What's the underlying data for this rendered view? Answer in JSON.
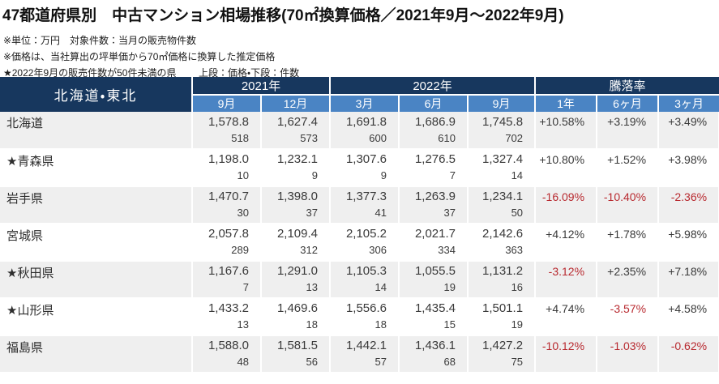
{
  "header": {
    "title": "47都道府県別　中古マンション相場推移(70㎡換算価格／2021年9月～2022年9月)",
    "note_unit": "※単位：万円　対象件数：当月の販売物件数",
    "note_price": "※価格は、当社算出の坪単価から70㎡価格に換算した推定価格",
    "note_star": "★2022年9月の販売件数が50件未満の県",
    "note_legend": "上段：価格・下段：件数"
  },
  "table": {
    "region_label": "北海道・東北",
    "col_groups": [
      {
        "label": "2021年",
        "span": 2
      },
      {
        "label": "2022年",
        "span": 3
      },
      {
        "label": "騰落率",
        "span": 3
      }
    ],
    "month_cols": [
      "9月",
      "12月",
      "3月",
      "6月",
      "9月"
    ],
    "rate_cols": [
      "1年",
      "6ヶ月",
      "3ヶ月"
    ],
    "rows": [
      {
        "name": "北海道",
        "prices": [
          "1,578.8",
          "1,627.4",
          "1,691.8",
          "1,686.9",
          "1,745.8"
        ],
        "counts": [
          "518",
          "573",
          "600",
          "610",
          "702"
        ],
        "rates": [
          "+10.58%",
          "+3.19%",
          "+3.49%"
        ]
      },
      {
        "name": "★青森県",
        "prices": [
          "1,198.0",
          "1,232.1",
          "1,307.6",
          "1,276.5",
          "1,327.4"
        ],
        "counts": [
          "10",
          "9",
          "9",
          "7",
          "14"
        ],
        "rates": [
          "+10.80%",
          "+1.52%",
          "+3.98%"
        ]
      },
      {
        "name": "岩手県",
        "prices": [
          "1,470.7",
          "1,398.0",
          "1,377.3",
          "1,263.9",
          "1,234.1"
        ],
        "counts": [
          "30",
          "37",
          "41",
          "37",
          "50"
        ],
        "rates": [
          "-16.09%",
          "-10.40%",
          "-2.36%"
        ]
      },
      {
        "name": "宮城県",
        "prices": [
          "2,057.8",
          "2,109.4",
          "2,105.2",
          "2,021.7",
          "2,142.6"
        ],
        "counts": [
          "289",
          "312",
          "306",
          "334",
          "363"
        ],
        "rates": [
          "+4.12%",
          "+1.78%",
          "+5.98%"
        ]
      },
      {
        "name": "★秋田県",
        "prices": [
          "1,167.6",
          "1,291.0",
          "1,105.3",
          "1,055.5",
          "1,131.2"
        ],
        "counts": [
          "7",
          "13",
          "14",
          "19",
          "16"
        ],
        "rates": [
          "-3.12%",
          "+2.35%",
          "+7.18%"
        ]
      },
      {
        "name": "★山形県",
        "prices": [
          "1,433.2",
          "1,469.6",
          "1,556.6",
          "1,435.4",
          "1,501.1"
        ],
        "counts": [
          "13",
          "18",
          "18",
          "15",
          "19"
        ],
        "rates": [
          "+4.74%",
          "-3.57%",
          "+4.58%"
        ]
      },
      {
        "name": "福島県",
        "prices": [
          "1,588.0",
          "1,581.5",
          "1,442.1",
          "1,436.1",
          "1,427.2"
        ],
        "counts": [
          "48",
          "56",
          "57",
          "68",
          "75"
        ],
        "rates": [
          "-10.12%",
          "-1.03%",
          "-0.62%"
        ]
      }
    ]
  },
  "colors": {
    "header_navy": "#17375e",
    "subheader_blue": "#4a84c4",
    "row_stripe_gray": "#efefef",
    "negative_red": "#b8292f",
    "text": "#3a3a3a"
  }
}
